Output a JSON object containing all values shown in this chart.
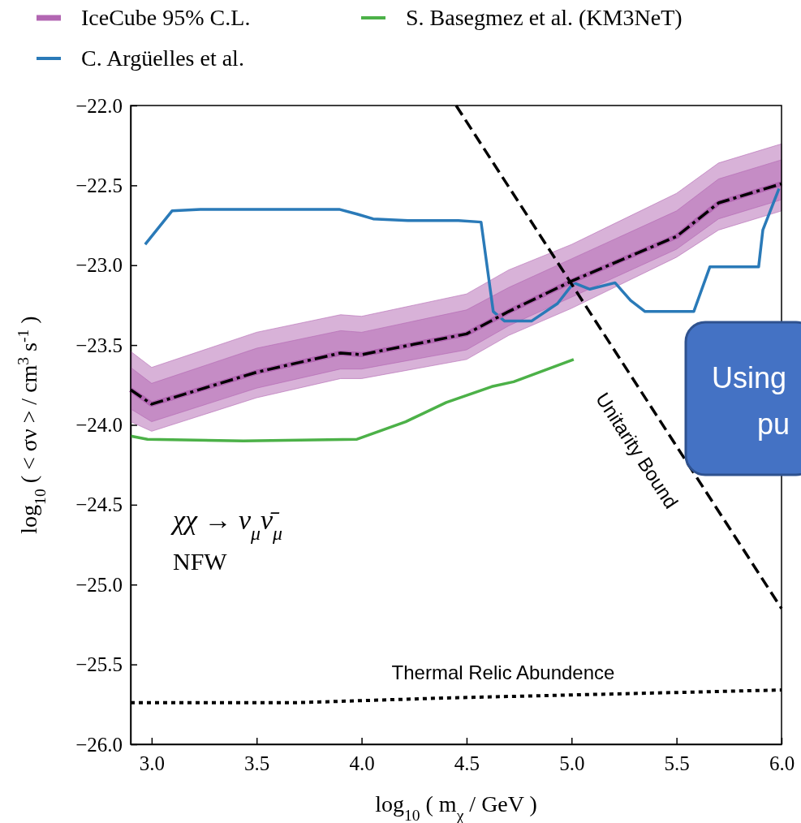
{
  "chart_data": {
    "type": "line",
    "xlabel": "log$_{10}$ ( m$_{χ}$ / GeV )",
    "ylabel": "log$_{10}$ ( < σν > / cm$^{3}$ s$^{-1}$ )",
    "xlim": [
      2.9,
      6.0
    ],
    "ylim": [
      -26.0,
      -22.0
    ],
    "xticks": [
      {
        "value": 3,
        "label": "3.0"
      },
      {
        "value": 3.5,
        "label": "3.5"
      },
      {
        "value": 4,
        "label": "4.0"
      },
      {
        "value": 4.5,
        "label": "4.5"
      },
      {
        "value": 5,
        "label": "5.0"
      },
      {
        "value": 5.5,
        "label": "5.5"
      },
      {
        "value": 6,
        "label": "6.0"
      }
    ],
    "yticks": [
      {
        "value": -26,
        "label": "−26.0"
      },
      {
        "value": -25.5,
        "label": "−25.5"
      },
      {
        "value": -25,
        "label": "−25.0"
      },
      {
        "value": -24.5,
        "label": "−24.5"
      },
      {
        "value": -24,
        "label": "−24.0"
      },
      {
        "value": -23.5,
        "label": "−23.5"
      },
      {
        "value": -23,
        "label": "−23.0"
      },
      {
        "value": -22.5,
        "label": "−22.5"
      },
      {
        "value": -22,
        "label": "−22.0"
      }
    ],
    "legend": "top left",
    "series": [
      {
        "name": "IceCube 95% C.L.",
        "color": "#b266b2",
        "x": [
          2.9,
          3.0,
          3.5,
          3.9,
          4.0,
          4.5,
          4.7,
          5.0,
          5.5,
          5.7,
          6.0
        ],
        "values": [
          -23.78,
          -23.87,
          -23.67,
          -23.55,
          -23.56,
          -23.43,
          -23.29,
          -23.1,
          -22.82,
          -22.61,
          -22.49
        ],
        "lower": [
          -23.98,
          -24.04,
          -23.83,
          -23.71,
          -23.71,
          -23.59,
          -23.44,
          -23.27,
          -22.95,
          -22.78,
          -22.66
        ],
        "upper": [
          -23.54,
          -23.64,
          -23.42,
          -23.31,
          -23.32,
          -23.18,
          -23.03,
          -22.87,
          -22.55,
          -22.36,
          -22.24
        ]
      },
      {
        "name": "C. Argüelles et al.",
        "color": "#2a7ab8",
        "x": [
          2.969,
          3.097,
          3.232,
          3.893,
          3.978,
          4.055,
          4.221,
          4.461,
          4.569,
          4.627,
          4.681,
          4.809,
          4.933,
          5.01,
          5.087,
          5.207,
          5.281,
          5.35,
          5.582,
          5.659,
          5.891,
          5.911,
          5.988
        ],
        "values": [
          -22.87,
          -22.66,
          -22.65,
          -22.65,
          -22.68,
          -22.71,
          -22.72,
          -22.72,
          -22.73,
          -23.29,
          -23.35,
          -23.35,
          -23.24,
          -23.11,
          -23.15,
          -23.11,
          -23.22,
          -23.29,
          -23.29,
          -23.01,
          -23.01,
          -22.78,
          -22.52
        ]
      },
      {
        "name": "S. Basegmez et al. (KM3NeT)",
        "color": "#4cb148",
        "x": [
          2.9,
          2.98,
          3.437,
          3.978,
          4.21,
          4.403,
          4.62,
          4.724,
          5.01
        ],
        "values": [
          -24.07,
          -24.09,
          -24.1,
          -24.09,
          -23.98,
          -23.86,
          -23.76,
          -23.73,
          -23.59
        ]
      },
      {
        "color": "#b266b2",
        "x": [
          2.9,
          3.0,
          3.5,
          3.9,
          4.0,
          4.5,
          4.7,
          5.0,
          5.5,
          5.7,
          6.0
        ],
        "values": [
          -23.78,
          -23.87,
          -23.67,
          -23.55,
          -23.56,
          -23.43,
          -23.29,
          -23.1,
          -22.82,
          -22.61,
          -22.49
        ],
        "lower": [
          -23.9,
          -23.98,
          -23.77,
          -23.65,
          -23.65,
          -23.53,
          -23.38,
          -23.2,
          -22.9,
          -22.71,
          -22.59
        ],
        "upper": [
          -23.64,
          -23.74,
          -23.52,
          -23.41,
          -23.42,
          -23.28,
          -23.14,
          -22.96,
          -22.66,
          -22.46,
          -22.34
        ]
      },
      {
        "color": "#000000",
        "line_style": "dashdot",
        "x": [
          2.9,
          3.0,
          3.5,
          3.9,
          4.0,
          4.5,
          4.7,
          5.0,
          5.5,
          5.7,
          6.0
        ],
        "values": [
          -23.78,
          -23.87,
          -23.67,
          -23.55,
          -23.56,
          -23.43,
          -23.29,
          -23.1,
          -22.82,
          -22.61,
          -22.49
        ]
      },
      {
        "color": "#000000",
        "line_style": "dashed",
        "x": [
          4.45,
          6.0
        ],
        "values": [
          -22.0,
          -25.15
        ]
      },
      {
        "color": "#000000",
        "line_style": "dotted",
        "x": [
          2.9,
          3.68,
          4.4,
          6.0
        ],
        "values": [
          -25.74,
          -25.74,
          -25.71,
          -25.66
        ]
      }
    ],
    "annotations": [
      "χχ → ν$_{μ}$ν̄$_{μ}$",
      "NFW",
      "Unitarity Bound",
      "Thermal Relic Abundence",
      "Using",
      "pu"
    ]
  }
}
